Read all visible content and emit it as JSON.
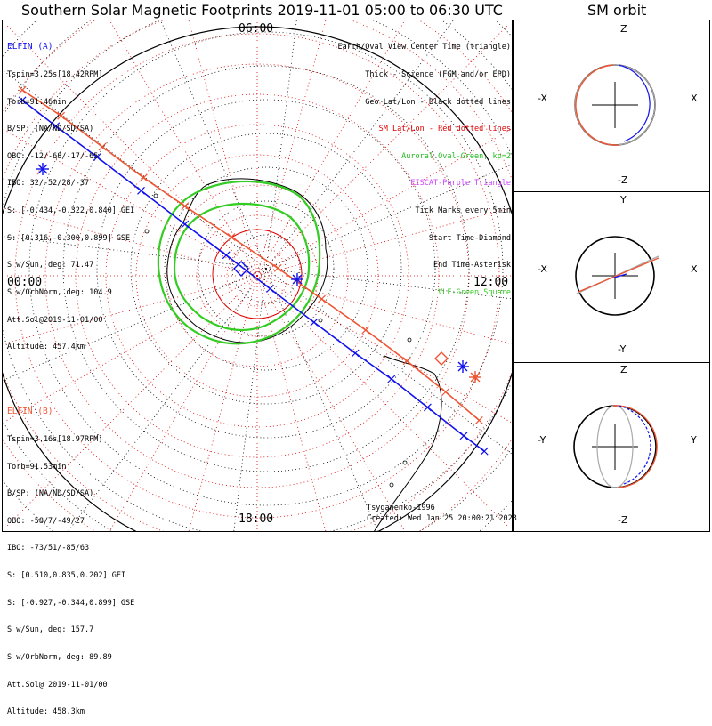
{
  "main_title": "Southern Solar Magnetic Footprints 2019-11-01 05:00 to 06:30 UTC",
  "orbit_title": "SM orbit",
  "colors": {
    "elfin_a": "#1111ee",
    "elfin_b": "#ee5533",
    "geo_grid": "#000000",
    "sm_grid": "#dd0000",
    "auroral_oval": "#33cc22",
    "eiscat": "#cc44ff",
    "vlf": "#33cc22",
    "coast": "#000000"
  },
  "local_time_labels": [
    "06:00",
    "12:00",
    "18:00",
    "00:00"
  ],
  "elfin_a": {
    "title": "ELFIN (A)",
    "lines": [
      "Tspin=3.25s[18.42RPM]",
      "Torb=91.46min",
      "B/SP: (NA/ND/SD/SA)",
      "OBO: -12/-68/-17/-65",
      "IBO: 32/-52/28/-37",
      "S: [-0.434,-0.322,0.840] GEI",
      "S: [0.316,-0.300,0.899] GSE",
      "S w/Sun, deg: 71.47",
      "S w/OrbNorm, deg: 104.9",
      "Att.Sol@2019-11-01/00",
      "Altitude: 457.4km"
    ]
  },
  "elfin_b": {
    "title": "ELFIN (B)",
    "lines": [
      "Tspin=3.16s[18.97RPM]",
      "Torb=91.53min",
      "B/SP: (NA/ND/SD/SA)",
      "OBO: -58/7/-49/27",
      "IBO: -73/51/-85/63",
      "S: [0.510,0.835,0.202] GEI",
      "S: [-0.927,-0.344,0.899] GSE",
      "S w/Sun, deg: 157.7",
      "S w/OrbNorm, deg: 89.89",
      "Att.Sol@ 2019-11-01/00",
      "Altitude: 458.3km"
    ]
  },
  "legend": [
    {
      "text": "Earth/Oval View Center Time (triangle)",
      "color": "#000000"
    },
    {
      "text": "Thick - Science (FGM and/or EPD)",
      "color": "#000000"
    },
    {
      "text": "Geo Lat/Lon - Black dotted lines",
      "color": "#000000"
    },
    {
      "text": "SM Lat/Lon - Red dotted lines",
      "color": "#dd0000"
    },
    {
      "text": "Auroral Oval-Green, kp=2",
      "color": "#22bb22"
    },
    {
      "text": "EISCAT-Purple Triangle",
      "color": "#cc44ff"
    },
    {
      "text": "Tick Marks every 5min",
      "color": "#000000"
    },
    {
      "text": "Start Time-Diamond",
      "color": "#000000"
    },
    {
      "text": "End Time-Asterisk",
      "color": "#000000"
    },
    {
      "text": "VLF-Green Square",
      "color": "#33cc22"
    }
  ],
  "credit": "Tsyganenko-1996",
  "created": "Created: Wed Jan 25 20:00:21 2023",
  "orbit_panels": [
    {
      "top": "Z",
      "bottom": "-Z",
      "left": "-X",
      "right": "X"
    },
    {
      "top": "Y",
      "bottom": "-Y",
      "left": "-X",
      "right": "X"
    },
    {
      "top": "Z",
      "bottom": "-Z",
      "left": "-Y",
      "right": "Y"
    }
  ],
  "chart_data": {
    "type": "polar-map",
    "title": "Southern Solar Magnetic Footprints 2019-11-01 05:00 to 06:30 UTC",
    "projection": "SM south polar, local time around edge",
    "series": [
      {
        "name": "ELFIN (A)",
        "color": "#1111ee",
        "footprint": [
          [
            -0.91,
            -0.68
          ],
          [
            -0.78,
            -0.58
          ],
          [
            -0.62,
            -0.46
          ],
          [
            -0.45,
            -0.33
          ],
          [
            -0.28,
            -0.2
          ],
          [
            -0.12,
            -0.08
          ],
          [
            0.05,
            0.05
          ],
          [
            0.22,
            0.18
          ],
          [
            0.38,
            0.3
          ],
          [
            0.52,
            0.4
          ],
          [
            0.66,
            0.51
          ],
          [
            0.8,
            0.62
          ],
          [
            0.88,
            0.68
          ]
        ]
      },
      {
        "name": "ELFIN (B)",
        "color": "#ee5533",
        "footprint": [
          [
            -0.91,
            -0.72
          ],
          [
            -0.76,
            -0.62
          ],
          [
            -0.6,
            -0.5
          ],
          [
            -0.44,
            -0.38
          ],
          [
            -0.28,
            -0.27
          ],
          [
            -0.1,
            -0.15
          ],
          [
            0.08,
            -0.03
          ],
          [
            0.25,
            0.09
          ],
          [
            0.42,
            0.21
          ],
          [
            0.58,
            0.33
          ],
          [
            0.73,
            0.45
          ],
          [
            0.86,
            0.56
          ]
        ]
      }
    ],
    "ovals": "Auroral Oval kp=2 (inner/outer boundaries)"
  }
}
